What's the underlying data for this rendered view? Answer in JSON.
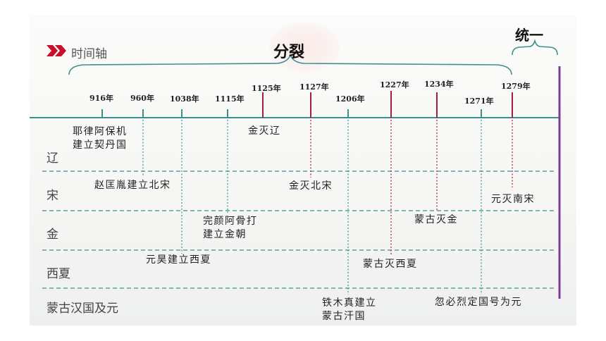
{
  "header": {
    "timeline_label": "时间轴",
    "split_label": "分裂",
    "unify_label": "统一"
  },
  "years": [
    "916年",
    "960年",
    "1038年",
    "1115年",
    "1125年",
    "1127年",
    "1206年",
    "1227年",
    "1234年",
    "1271年",
    "1279年"
  ],
  "rows": [
    "辽",
    "宋",
    "金",
    "西夏",
    "蒙古汉国及元"
  ],
  "events": [
    "耶律阿保机\n建立契丹国",
    "赵匡胤建立北宋",
    "元昊建立西夏",
    "完颜阿骨打\n建立金朝",
    "金灭辽",
    "金灭北宋",
    "铁木真建立\n蒙古汗国",
    "蒙古灭西夏",
    "蒙古灭金",
    "忽必烈定国号为元",
    "元灭南宋"
  ],
  "colors": {
    "axis": "#3e8e90",
    "tick_teal": "#3e8e90",
    "tick_red": "#a3203a",
    "unify_line": "#7a3e9a",
    "arrow": "#c8102e"
  }
}
